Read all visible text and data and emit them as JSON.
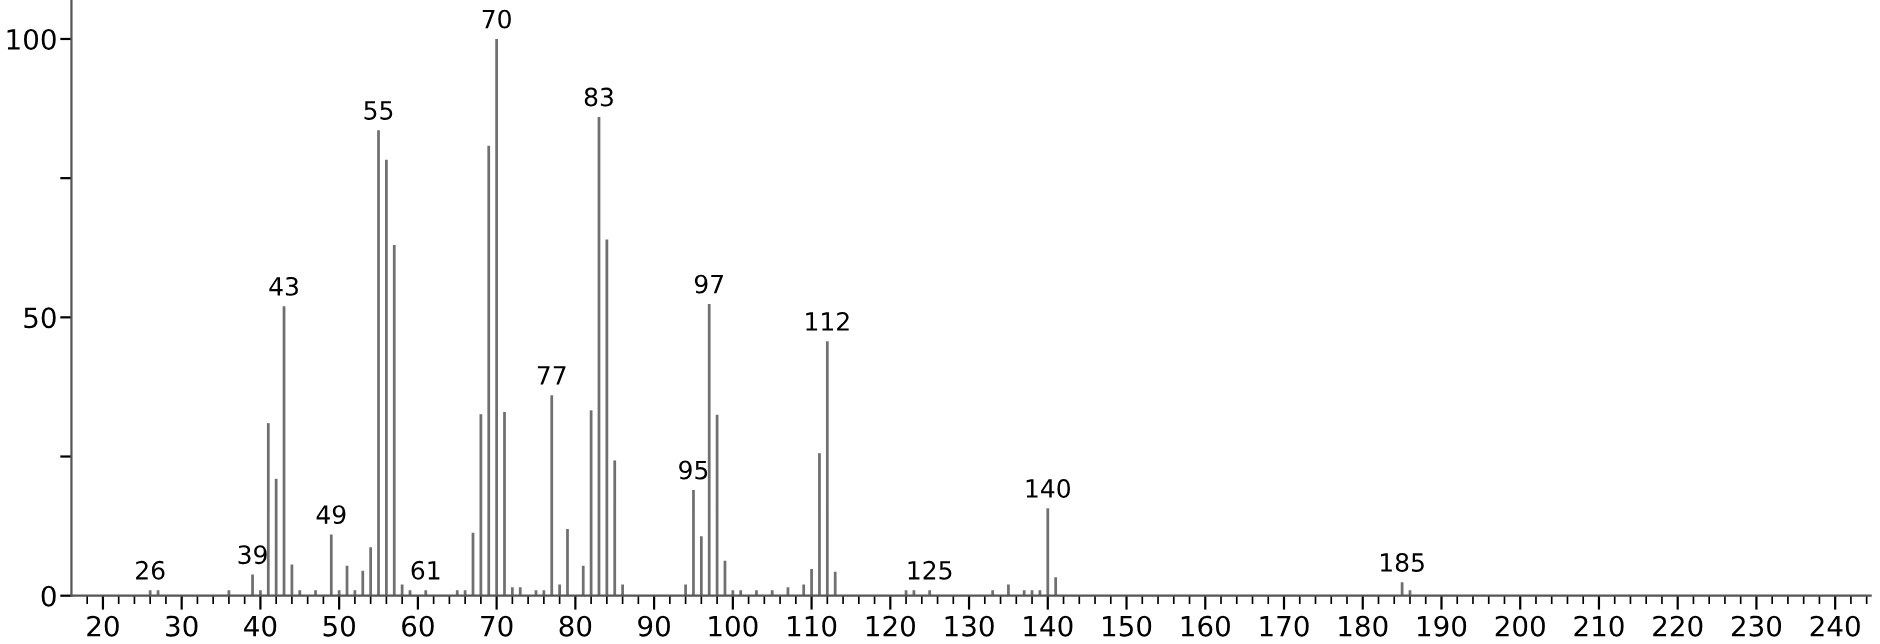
{
  "chart_data": {
    "type": "bar",
    "x": [
      26,
      27,
      36,
      39,
      40,
      41,
      42,
      43,
      44,
      45,
      47,
      49,
      50,
      51,
      52,
      53,
      54,
      55,
      56,
      57,
      58,
      59,
      61,
      65,
      66,
      67,
      68,
      69,
      70,
      71,
      72,
      73,
      75,
      76,
      77,
      78,
      79,
      81,
      82,
      83,
      84,
      85,
      86,
      94,
      95,
      96,
      97,
      98,
      99,
      100,
      101,
      103,
      105,
      107,
      109,
      110,
      111,
      112,
      113,
      122,
      123,
      125,
      133,
      135,
      137,
      138,
      139,
      140,
      141,
      185,
      186
    ],
    "values": [
      1,
      1,
      1,
      3.8,
      1,
      31,
      21,
      52,
      5.6,
      1,
      1,
      11,
      1,
      5.4,
      1,
      4.5,
      8.7,
      83.6,
      78.3,
      63,
      2,
      1,
      1,
      1,
      1,
      11.3,
      32.6,
      80.8,
      100,
      33,
      1.5,
      1.5,
      1,
      1,
      36,
      2,
      12,
      5.4,
      33.3,
      86,
      64,
      24.3,
      2,
      2,
      19,
      10.7,
      52.4,
      32.5,
      6.3,
      1,
      1,
      1,
      1,
      1.5,
      2,
      4.8,
      25.6,
      45.7,
      4.3,
      1,
      1,
      1,
      1,
      2,
      1,
      1,
      1,
      15.7,
      3.3,
      2.4,
      1
    ],
    "color": "#707070",
    "xlim": [
      16,
      244.5
    ],
    "ylim": [
      0,
      107
    ],
    "xticks": [
      20,
      30,
      40,
      50,
      60,
      70,
      80,
      90,
      100,
      110,
      120,
      130,
      140,
      150,
      160,
      170,
      180,
      190,
      200,
      210,
      220,
      230,
      240
    ],
    "yticks": [
      0,
      {
        "value": 25,
        "label": null
      },
      50,
      {
        "value": 75,
        "label": null
      },
      100
    ],
    "grid": false,
    "legend": false,
    "annotations": [
      {
        "text": "26",
        "x": 26,
        "y": 1
      },
      {
        "text": "39",
        "x": 39,
        "y": 3.8
      },
      {
        "text": "43",
        "x": 43,
        "y": 52
      },
      {
        "text": "49",
        "x": 49,
        "y": 11
      },
      {
        "text": "55",
        "x": 55,
        "y": 83.6
      },
      {
        "text": "61",
        "x": 61,
        "y": 1
      },
      {
        "text": "70",
        "x": 70,
        "y": 100
      },
      {
        "text": "77",
        "x": 77,
        "y": 36
      },
      {
        "text": "83",
        "x": 83,
        "y": 86
      },
      {
        "text": "95",
        "x": 95,
        "y": 19
      },
      {
        "text": "97",
        "x": 97,
        "y": 52.4
      },
      {
        "text": "112",
        "x": 112,
        "y": 45.7
      },
      {
        "text": "125",
        "x": 125,
        "y": 1
      },
      {
        "text": "140",
        "x": 140,
        "y": 15.7
      },
      {
        "text": "185",
        "x": 185,
        "y": 2.4
      }
    ]
  }
}
